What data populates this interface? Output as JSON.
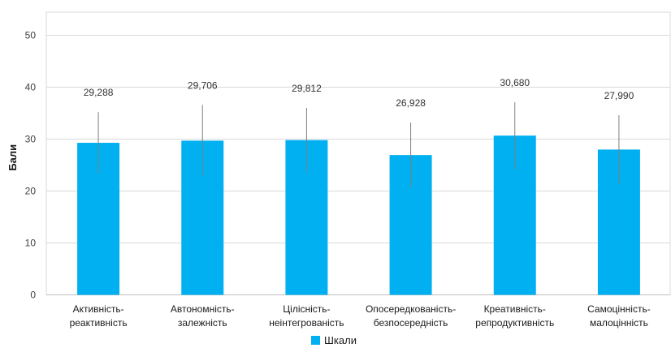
{
  "chart_data": {
    "type": "bar",
    "categories": [
      [
        "Активність-",
        "реактивність"
      ],
      [
        "Автономність-",
        "залежність"
      ],
      [
        "Цілісність-",
        "неінтегрованість"
      ],
      [
        "Опосередкованість-",
        "безпосередність"
      ],
      [
        "Креативність-",
        "репродуктивність"
      ],
      [
        "Самоцінність-",
        "малоцінність"
      ]
    ],
    "series": [
      {
        "name": "Шкали",
        "values": [
          29.288,
          29.706,
          29.812,
          26.928,
          30.68,
          27.99
        ],
        "value_labels": [
          "29,288",
          "29,706",
          "29,812",
          "26,928",
          "30,680",
          "27,990"
        ],
        "error_low": [
          23.4,
          22.8,
          23.6,
          20.6,
          24.2,
          21.4
        ],
        "error_high": [
          35.2,
          36.6,
          36.0,
          33.2,
          37.1,
          34.6
        ]
      }
    ],
    "ylabel": "Бали",
    "ylim": [
      0,
      50
    ],
    "yticks": [
      "0",
      "10",
      "20",
      "30",
      "40",
      "50"
    ],
    "grid": true,
    "legend": "bottom",
    "colors": {
      "bar": "#00B0F0",
      "grid": "#d9d9d9",
      "error": "#7f7f7f"
    }
  }
}
